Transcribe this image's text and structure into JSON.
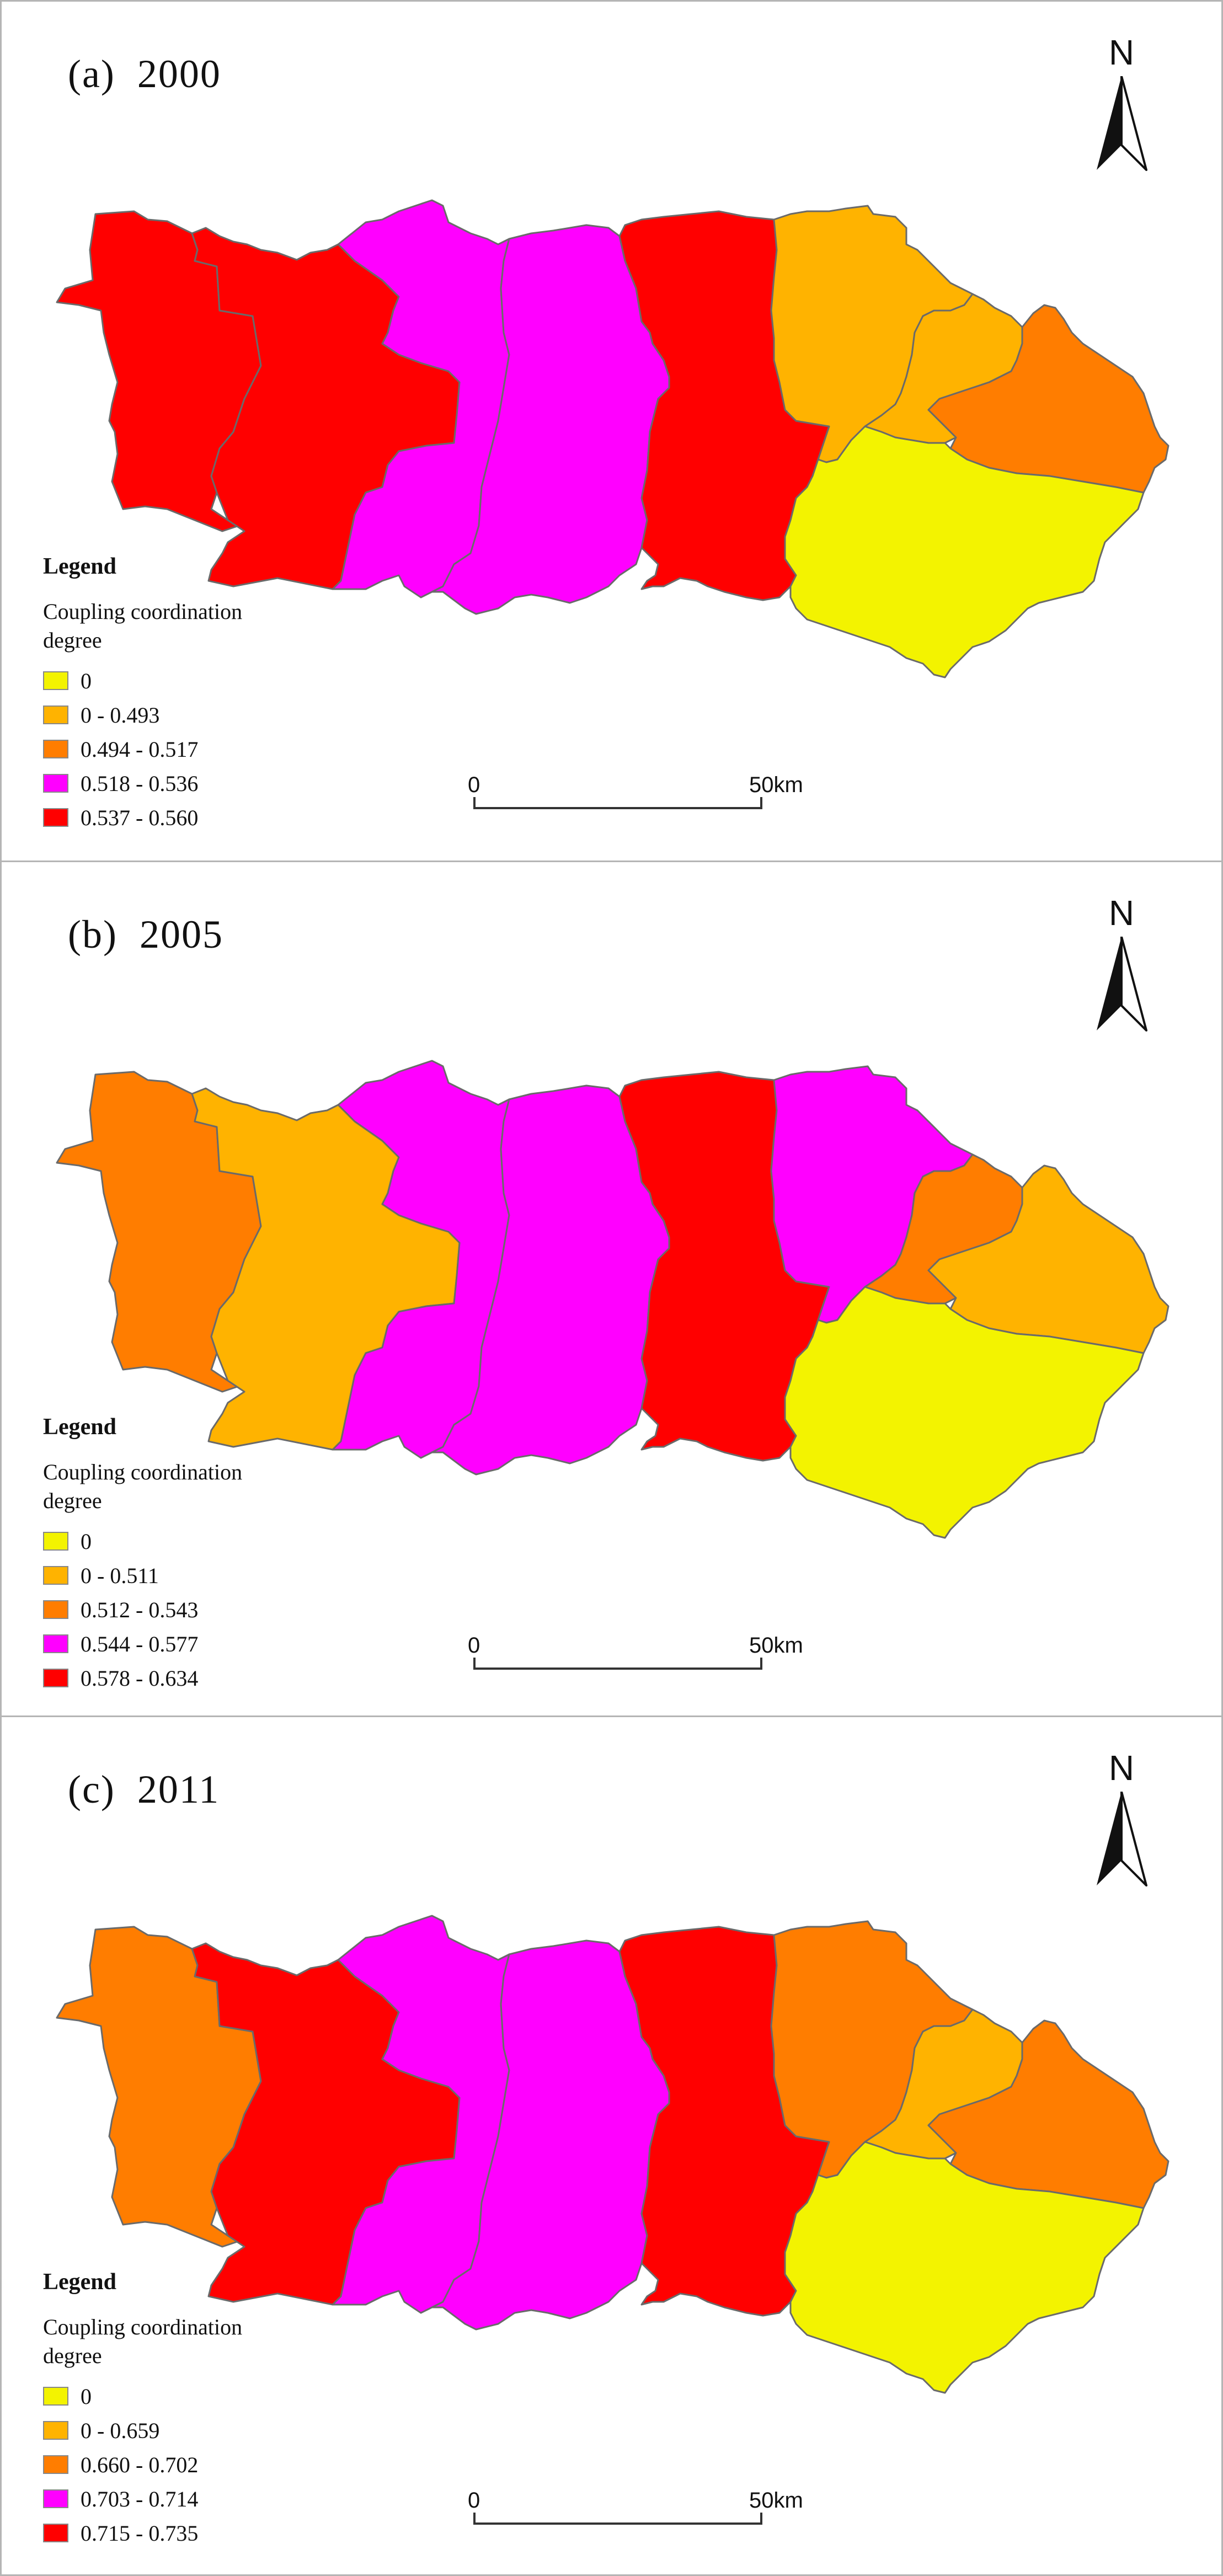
{
  "colors": {
    "yellow": "#f3f300",
    "light_orange": "#ffb300",
    "orange": "#ff7d00",
    "magenta": "#ff00ff",
    "red": "#ff0000"
  },
  "north_arrow": {
    "letter": "N",
    "icon": "north-arrow-icon"
  },
  "scale_bar": {
    "start_label": "0",
    "end_label": "50",
    "unit": "km"
  },
  "panels": [
    {
      "title": "(a)  2000",
      "legend": {
        "title": "Legend",
        "subtitle": "Coupling coordination degree",
        "classes": [
          {
            "label": "0",
            "color": "#f3f300"
          },
          {
            "label": "0 - 0.493",
            "color": "#ffb300"
          },
          {
            "label": "0.494 - 0.517",
            "color": "#ff7d00"
          },
          {
            "label": "0.518 - 0.536",
            "color": "#ff00ff"
          },
          {
            "label": "0.537 - 0.560",
            "color": "#ff0000"
          }
        ]
      },
      "regions": [
        "#ff0000",
        "#ff0000",
        "#ff00ff",
        "#ff00ff",
        "#ff0000",
        "#ffb300",
        "#ffb300",
        "#ff7d00",
        "#f3f300"
      ]
    },
    {
      "title": "(b)  2005",
      "legend": {
        "title": "Legend",
        "subtitle": "Coupling coordination degree",
        "classes": [
          {
            "label": "0",
            "color": "#f3f300"
          },
          {
            "label": "0 - 0.511",
            "color": "#ffb300"
          },
          {
            "label": "0.512 - 0.543",
            "color": "#ff7d00"
          },
          {
            "label": "0.544 - 0.577",
            "color": "#ff00ff"
          },
          {
            "label": "0.578 - 0.634",
            "color": "#ff0000"
          }
        ]
      },
      "regions": [
        "#ff7d00",
        "#ffb300",
        "#ff00ff",
        "#ff00ff",
        "#ff0000",
        "#ff00ff",
        "#ff7d00",
        "#ffb300",
        "#f3f300"
      ]
    },
    {
      "title": "(c)  2011",
      "legend": {
        "title": "Legend",
        "subtitle": "Coupling coordination degree",
        "classes": [
          {
            "label": "0",
            "color": "#f3f300"
          },
          {
            "label": "0 - 0.659",
            "color": "#ffb300"
          },
          {
            "label": "0.660 - 0.702",
            "color": "#ff7d00"
          },
          {
            "label": "0.703 - 0.714",
            "color": "#ff00ff"
          },
          {
            "label": "0.715 - 0.735",
            "color": "#ff0000"
          }
        ]
      },
      "regions": [
        "#ff7d00",
        "#ff0000",
        "#ff00ff",
        "#ff00ff",
        "#ff0000",
        "#ff7d00",
        "#ffb300",
        "#ff7d00",
        "#f3f300"
      ]
    }
  ]
}
